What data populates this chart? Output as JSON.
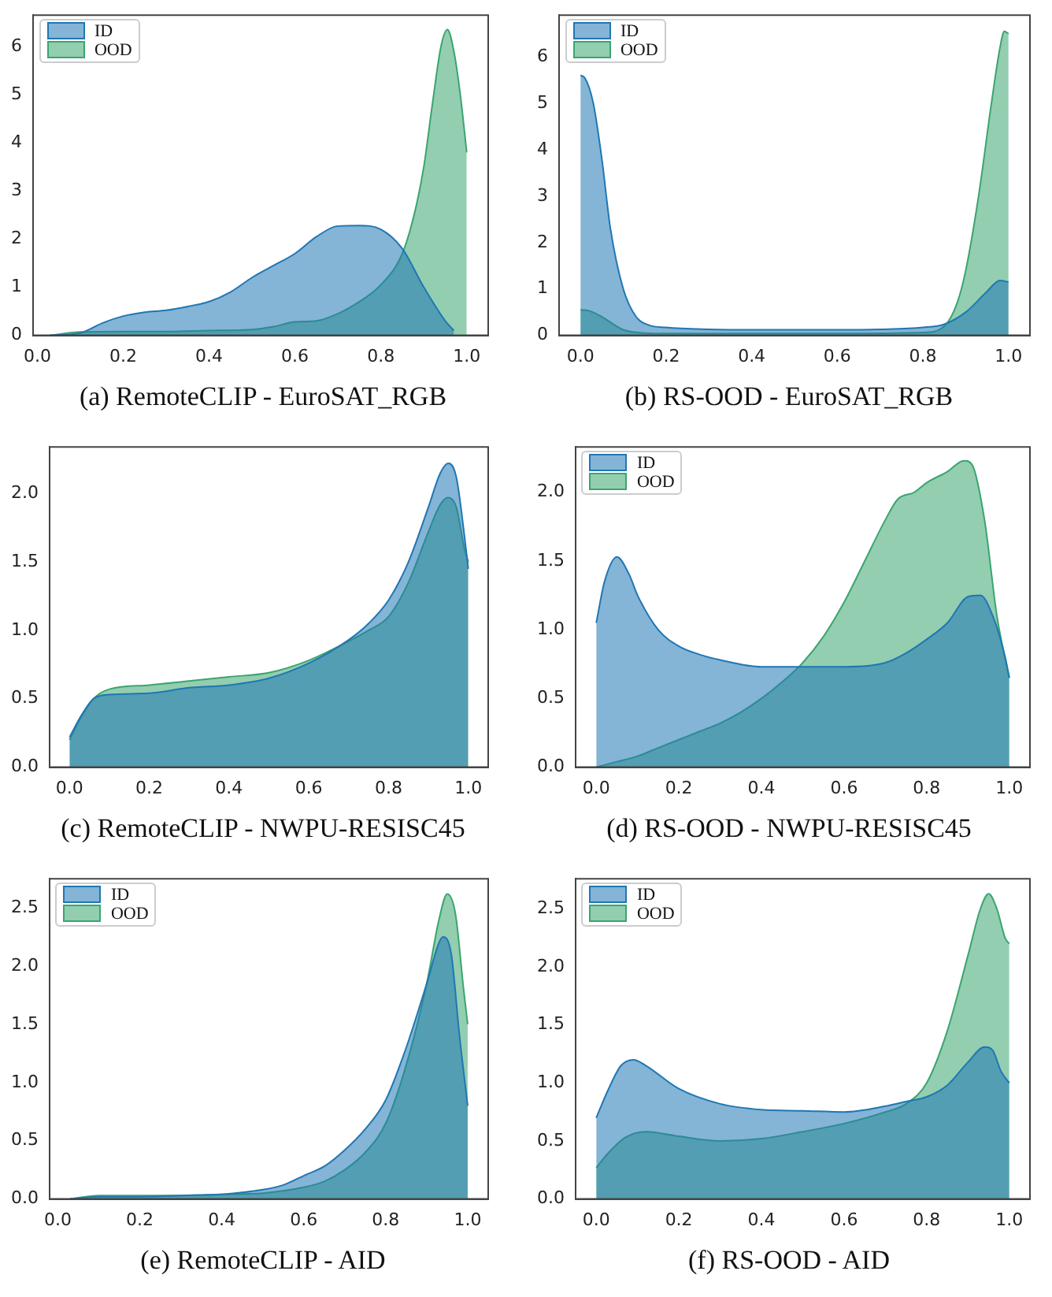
{
  "chart_data": [
    {
      "type": "area",
      "title": "(a) RemoteCLIP - EuroSAT_RGB",
      "legend": "top left",
      "grid": false,
      "xlim": [
        -0.01,
        1.05
      ],
      "ylim": [
        0,
        6.65
      ],
      "xticks": [
        {
          "value": 0,
          "label": "0.0"
        },
        {
          "value": 0.2,
          "label": "0.2"
        },
        {
          "value": 0.4,
          "label": "0.4"
        },
        {
          "value": 0.6,
          "label": "0.6"
        },
        {
          "value": 0.8,
          "label": "0.8"
        },
        {
          "value": 1,
          "label": "1.0"
        }
      ],
      "yticks": [
        0,
        1,
        2,
        3,
        4,
        5,
        6
      ],
      "series": [
        {
          "name": "ID",
          "color": "#1f77b4",
          "x": [
            0.03,
            0.1,
            0.15,
            0.2,
            0.25,
            0.3,
            0.35,
            0.4,
            0.45,
            0.5,
            0.55,
            0.6,
            0.65,
            0.7,
            0.75,
            0.8,
            0.85,
            0.9,
            0.95,
            0.97
          ],
          "values": [
            0,
            0.05,
            0.25,
            0.4,
            0.48,
            0.52,
            0.6,
            0.7,
            0.9,
            1.2,
            1.45,
            1.7,
            2.05,
            2.27,
            2.28,
            2.2,
            1.8,
            1,
            0.3,
            0.1
          ]
        },
        {
          "name": "OOD",
          "color": "#3aa56f",
          "x": [
            0.03,
            0.1,
            0.2,
            0.3,
            0.4,
            0.5,
            0.55,
            0.6,
            0.65,
            0.7,
            0.75,
            0.8,
            0.85,
            0.88,
            0.9,
            0.92,
            0.94,
            0.955,
            0.97,
            0.985,
            1.0
          ],
          "values": [
            0,
            0.07,
            0.08,
            0.08,
            0.1,
            0.12,
            0.18,
            0.28,
            0.3,
            0.45,
            0.7,
            1.05,
            1.7,
            2.6,
            3.5,
            4.8,
            6,
            6.35,
            5.9,
            5,
            3.8
          ]
        }
      ]
    },
    {
      "type": "area",
      "title": "(b) RS-OOD - EuroSAT_RGB",
      "legend": "top left",
      "grid": false,
      "xlim": [
        -0.05,
        1.05
      ],
      "ylim": [
        0,
        6.9
      ],
      "xticks": [
        {
          "value": 0,
          "label": "0.0"
        },
        {
          "value": 0.2,
          "label": "0.2"
        },
        {
          "value": 0.4,
          "label": "0.4"
        },
        {
          "value": 0.6,
          "label": "0.6"
        },
        {
          "value": 0.8,
          "label": "0.8"
        },
        {
          "value": 1,
          "label": "1.0"
        }
      ],
      "yticks": [
        0,
        1,
        2,
        3,
        4,
        5,
        6
      ],
      "series": [
        {
          "name": "ID",
          "color": "#1f77b4",
          "x": [
            0,
            0.01,
            0.03,
            0.05,
            0.07,
            0.1,
            0.13,
            0.16,
            0.2,
            0.3,
            0.4,
            0.5,
            0.6,
            0.7,
            0.8,
            0.85,
            0.9,
            0.95,
            0.98,
            1.0
          ],
          "values": [
            5.6,
            5.55,
            5,
            3.8,
            2.3,
            1,
            0.4,
            0.22,
            0.17,
            0.13,
            0.12,
            0.12,
            0.12,
            0.13,
            0.17,
            0.24,
            0.5,
            0.95,
            1.18,
            1.15
          ]
        },
        {
          "name": "OOD",
          "color": "#3aa56f",
          "x": [
            0,
            0.02,
            0.05,
            0.1,
            0.15,
            0.2,
            0.4,
            0.6,
            0.8,
            0.85,
            0.88,
            0.9,
            0.93,
            0.96,
            0.98,
            0.99,
            1.0
          ],
          "values": [
            0.55,
            0.53,
            0.4,
            0.12,
            0.05,
            0.04,
            0.04,
            0.04,
            0.06,
            0.2,
            0.7,
            1.4,
            3,
            5,
            6.2,
            6.55,
            6.5
          ]
        }
      ]
    },
    {
      "type": "area",
      "title": "(c) RemoteCLIP - NWPU-RESISC45",
      "grid": false,
      "xlim": [
        -0.05,
        1.05
      ],
      "ylim": [
        0,
        2.34
      ],
      "xticks": [
        {
          "value": 0,
          "label": "0.0"
        },
        {
          "value": 0.2,
          "label": "0.2"
        },
        {
          "value": 0.4,
          "label": "0.4"
        },
        {
          "value": 0.6,
          "label": "0.6"
        },
        {
          "value": 0.8,
          "label": "0.8"
        },
        {
          "value": 1,
          "label": "1.0"
        }
      ],
      "yticks": [
        {
          "value": 0,
          "label": "0.0"
        },
        {
          "value": 0.5,
          "label": "0.5"
        },
        {
          "value": 1,
          "label": "1.0"
        },
        {
          "value": 1.5,
          "label": "1.5"
        },
        {
          "value": 2,
          "label": "2.0"
        }
      ],
      "series": [
        {
          "color": "#1f77b4",
          "x": [
            0,
            0.03,
            0.06,
            0.1,
            0.2,
            0.3,
            0.4,
            0.5,
            0.6,
            0.7,
            0.75,
            0.8,
            0.85,
            0.9,
            0.93,
            0.95,
            0.97,
            0.99,
            1.0
          ],
          "values": [
            0.22,
            0.38,
            0.5,
            0.53,
            0.54,
            0.58,
            0.6,
            0.65,
            0.76,
            0.93,
            1.05,
            1.22,
            1.5,
            1.9,
            2.15,
            2.22,
            2.12,
            1.7,
            1.45
          ]
        },
        {
          "color": "#3aa56f",
          "x": [
            0,
            0.03,
            0.06,
            0.1,
            0.2,
            0.3,
            0.4,
            0.5,
            0.6,
            0.7,
            0.75,
            0.8,
            0.85,
            0.9,
            0.93,
            0.95,
            0.97,
            0.99,
            1.0
          ],
          "values": [
            0.2,
            0.37,
            0.5,
            0.57,
            0.6,
            0.63,
            0.66,
            0.69,
            0.78,
            0.92,
            1,
            1.1,
            1.35,
            1.72,
            1.92,
            1.97,
            1.9,
            1.6,
            1.5
          ]
        }
      ]
    },
    {
      "type": "area",
      "title": "(d) RS-OOD - NWPU-RESISC45",
      "legend": "top left",
      "grid": false,
      "xlim": [
        -0.05,
        1.05
      ],
      "ylim": [
        0,
        2.33
      ],
      "xticks": [
        {
          "value": 0,
          "label": "0.0"
        },
        {
          "value": 0.2,
          "label": "0.2"
        },
        {
          "value": 0.4,
          "label": "0.4"
        },
        {
          "value": 0.6,
          "label": "0.6"
        },
        {
          "value": 0.8,
          "label": "0.8"
        },
        {
          "value": 1,
          "label": "1.0"
        }
      ],
      "yticks": [
        {
          "value": 0,
          "label": "0.0"
        },
        {
          "value": 0.5,
          "label": "0.5"
        },
        {
          "value": 1,
          "label": "1.0"
        },
        {
          "value": 1.5,
          "label": "1.5"
        },
        {
          "value": 2,
          "label": "2.0"
        }
      ],
      "series": [
        {
          "name": "ID",
          "color": "#1f77b4",
          "x": [
            0,
            0.02,
            0.05,
            0.08,
            0.1,
            0.15,
            0.2,
            0.25,
            0.3,
            0.4,
            0.5,
            0.6,
            0.7,
            0.75,
            0.8,
            0.85,
            0.9,
            0.93,
            0.96,
            0.99,
            1.0
          ],
          "values": [
            1.05,
            1.35,
            1.53,
            1.4,
            1.25,
            1,
            0.88,
            0.82,
            0.78,
            0.73,
            0.73,
            0.73,
            0.76,
            0.83,
            0.93,
            1.05,
            1.24,
            1.25,
            1.1,
            0.8,
            0.65
          ]
        },
        {
          "name": "OOD",
          "color": "#3aa56f",
          "x": [
            0,
            0.05,
            0.1,
            0.15,
            0.2,
            0.25,
            0.3,
            0.35,
            0.4,
            0.45,
            0.5,
            0.55,
            0.6,
            0.65,
            0.7,
            0.73,
            0.77,
            0.8,
            0.85,
            0.89,
            0.91,
            0.94,
            0.97,
            1.0
          ],
          "values": [
            0,
            0.04,
            0.08,
            0.14,
            0.2,
            0.26,
            0.32,
            0.4,
            0.5,
            0.62,
            0.76,
            0.95,
            1.2,
            1.5,
            1.8,
            1.95,
            2,
            2.07,
            2.15,
            2.23,
            2.2,
            1.8,
            1.1,
            0.65
          ]
        }
      ]
    },
    {
      "type": "area",
      "title": "(e) RemoteCLIP - AID",
      "legend": "top left",
      "grid": false,
      "xlim": [
        -0.02,
        1.05
      ],
      "ylim": [
        0,
        2.75
      ],
      "xticks": [
        {
          "value": 0,
          "label": "0.0"
        },
        {
          "value": 0.2,
          "label": "0.2"
        },
        {
          "value": 0.4,
          "label": "0.4"
        },
        {
          "value": 0.6,
          "label": "0.6"
        },
        {
          "value": 0.8,
          "label": "0.8"
        },
        {
          "value": 1,
          "label": "1.0"
        }
      ],
      "yticks": [
        {
          "value": 0,
          "label": "0.0"
        },
        {
          "value": 0.5,
          "label": "0.5"
        },
        {
          "value": 1,
          "label": "1.0"
        },
        {
          "value": 1.5,
          "label": "1.5"
        },
        {
          "value": 2,
          "label": "2.0"
        },
        {
          "value": 2.5,
          "label": "2.5"
        }
      ],
      "series": [
        {
          "name": "ID",
          "color": "#1f77b4",
          "x": [
            0.03,
            0.1,
            0.2,
            0.3,
            0.4,
            0.5,
            0.55,
            0.6,
            0.65,
            0.7,
            0.75,
            0.8,
            0.85,
            0.9,
            0.93,
            0.94,
            0.96,
            0.98,
            1.0
          ],
          "values": [
            0,
            0.02,
            0.02,
            0.03,
            0.04,
            0.08,
            0.12,
            0.2,
            0.28,
            0.42,
            0.6,
            0.85,
            1.3,
            1.85,
            2.2,
            2.25,
            2.1,
            1.4,
            0.8
          ]
        },
        {
          "name": "OOD",
          "color": "#3aa56f",
          "x": [
            0.03,
            0.1,
            0.2,
            0.3,
            0.4,
            0.5,
            0.6,
            0.65,
            0.7,
            0.75,
            0.8,
            0.85,
            0.9,
            0.93,
            0.95,
            0.97,
            0.99,
            1.0
          ],
          "values": [
            0,
            0.03,
            0.03,
            0.03,
            0.04,
            0.05,
            0.1,
            0.15,
            0.25,
            0.4,
            0.65,
            1.15,
            1.85,
            2.4,
            2.62,
            2.45,
            1.8,
            1.5
          ]
        }
      ]
    },
    {
      "type": "area",
      "title": "(f) RS-OOD - AID",
      "legend": "top left",
      "grid": false,
      "xlim": [
        -0.05,
        1.05
      ],
      "ylim": [
        0,
        2.76
      ],
      "xticks": [
        {
          "value": 0,
          "label": "0.0"
        },
        {
          "value": 0.2,
          "label": "0.2"
        },
        {
          "value": 0.4,
          "label": "0.4"
        },
        {
          "value": 0.6,
          "label": "0.6"
        },
        {
          "value": 0.8,
          "label": "0.8"
        },
        {
          "value": 1,
          "label": "1.0"
        }
      ],
      "yticks": [
        {
          "value": 0,
          "label": "0.0"
        },
        {
          "value": 0.5,
          "label": "0.5"
        },
        {
          "value": 1,
          "label": "1.0"
        },
        {
          "value": 1.5,
          "label": "1.5"
        },
        {
          "value": 2,
          "label": "2.0"
        },
        {
          "value": 2.5,
          "label": "2.5"
        }
      ],
      "series": [
        {
          "name": "ID",
          "color": "#1f77b4",
          "x": [
            0,
            0.03,
            0.06,
            0.09,
            0.12,
            0.2,
            0.3,
            0.4,
            0.5,
            0.6,
            0.7,
            0.75,
            0.8,
            0.85,
            0.9,
            0.94,
            0.96,
            0.98,
            1.0
          ],
          "values": [
            0.7,
            0.95,
            1.15,
            1.2,
            1.15,
            0.95,
            0.82,
            0.77,
            0.76,
            0.75,
            0.8,
            0.84,
            0.88,
            0.98,
            1.18,
            1.31,
            1.28,
            1.1,
            1
          ]
        },
        {
          "name": "OOD",
          "color": "#3aa56f",
          "x": [
            0,
            0.03,
            0.07,
            0.12,
            0.2,
            0.3,
            0.4,
            0.5,
            0.6,
            0.7,
            0.75,
            0.8,
            0.85,
            0.9,
            0.93,
            0.95,
            0.97,
            0.99,
            1.0
          ],
          "values": [
            0.27,
            0.4,
            0.53,
            0.58,
            0.54,
            0.5,
            0.52,
            0.58,
            0.65,
            0.75,
            0.82,
            1,
            1.45,
            2.1,
            2.5,
            2.63,
            2.5,
            2.25,
            2.2
          ]
        }
      ]
    }
  ]
}
